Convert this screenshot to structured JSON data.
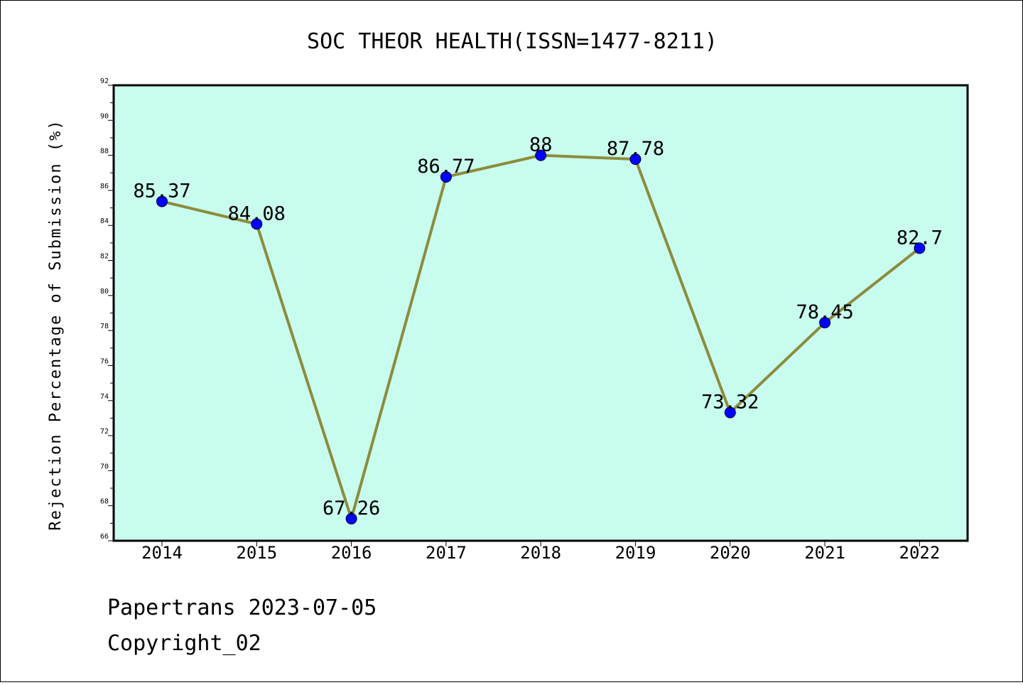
{
  "colors": {
    "plot_background": "#c8fcee",
    "line": "#8c8c3c",
    "marker": "#0000ff",
    "frame": "#000000"
  },
  "chart_data": {
    "type": "line",
    "title": "SOC THEOR HEALTH(ISSN=1477-8211)",
    "xlabel": "",
    "ylabel": "Rejection Percentage of Submission (%)",
    "categories": [
      "2014",
      "2015",
      "2016",
      "2017",
      "2018",
      "2019",
      "2020",
      "2021",
      "2022"
    ],
    "series": [
      {
        "values": [
          85.37,
          84.08,
          67.26,
          86.77,
          88,
          87.78,
          73.32,
          78.45,
          82.7
        ],
        "labels": [
          "85.37",
          "84.08",
          "67.26",
          "86.77",
          "88",
          "87.78",
          "73.32",
          "78.45",
          "82.7"
        ]
      }
    ],
    "ylim": [
      66,
      92
    ],
    "yticks": [
      "66",
      "68",
      "70",
      "72",
      "74",
      "76",
      "78",
      "80",
      "82",
      "84",
      "86",
      "88",
      "90",
      "92"
    ],
    "grid": false,
    "legend": "none"
  },
  "footer": {
    "line1": "Papertrans 2023-07-05",
    "line2": "Copyright_02"
  }
}
